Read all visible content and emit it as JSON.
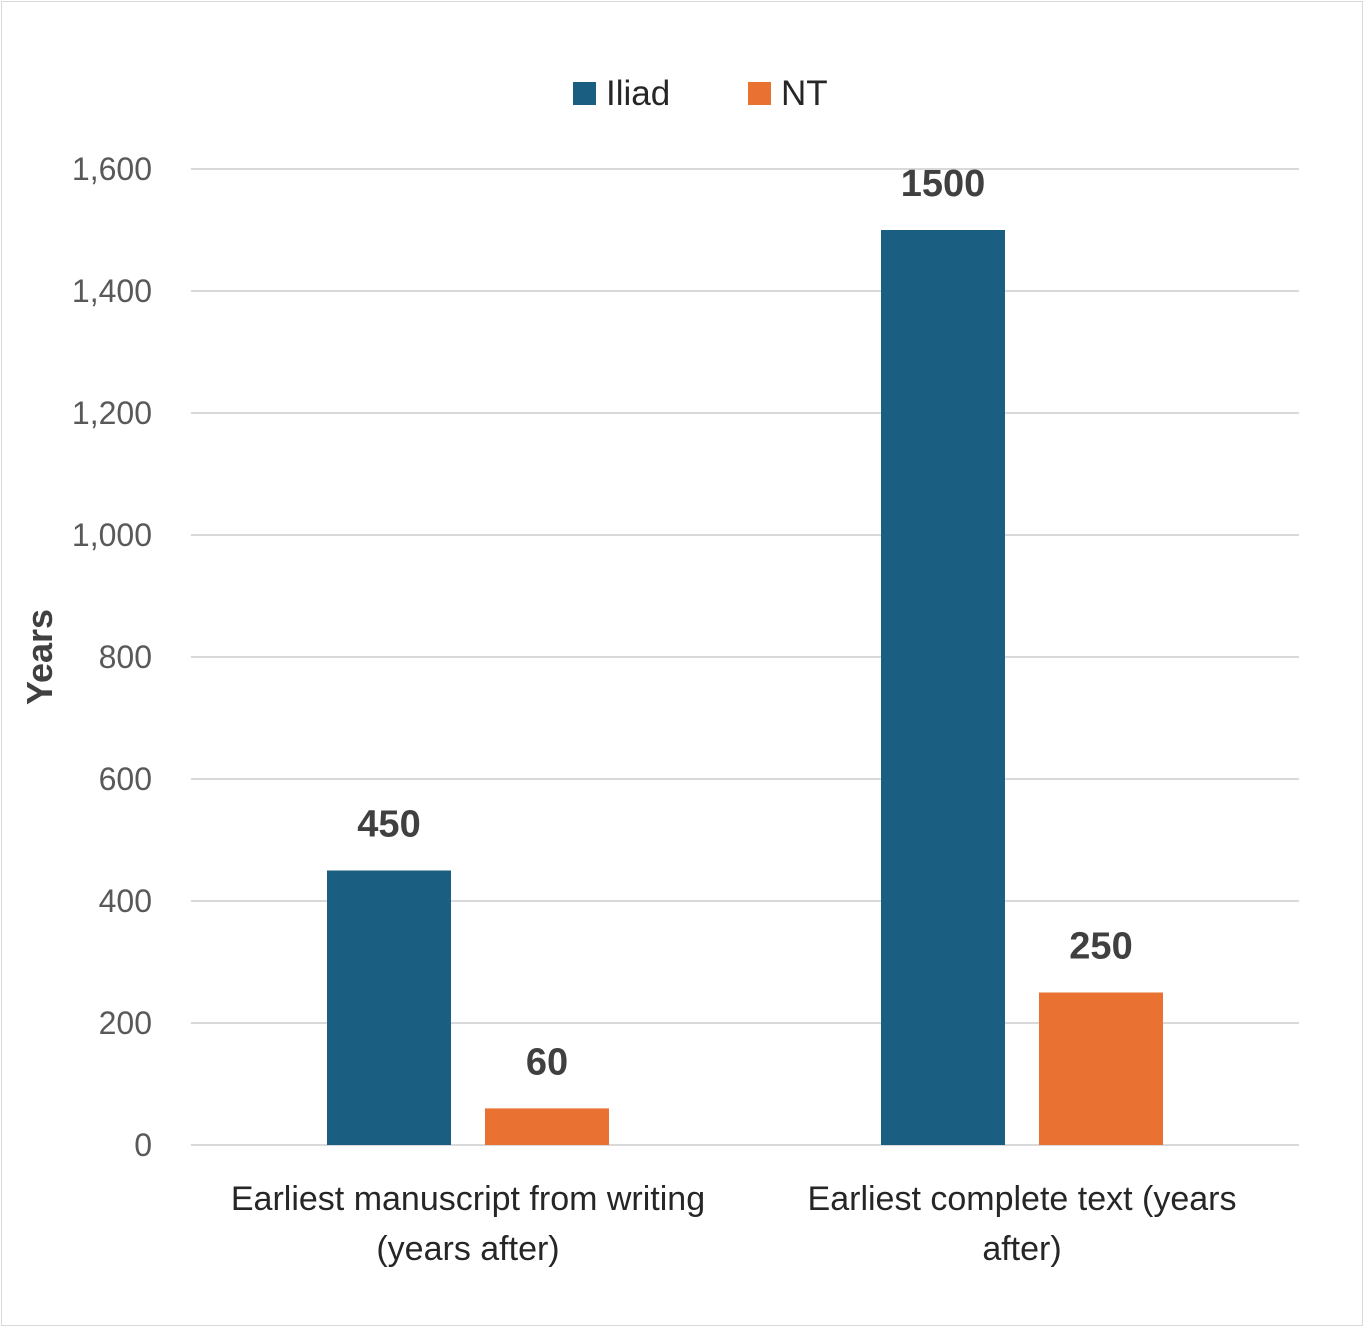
{
  "chart_data": {
    "type": "bar",
    "categories": [
      "Earliest manuscript from writing (years after)",
      "Earliest complete text (years after)"
    ],
    "category_lines": [
      [
        "Earliest manuscript from writing",
        "(years after)"
      ],
      [
        "Earliest complete text (years",
        "after)"
      ]
    ],
    "series": [
      {
        "name": "Iliad",
        "values": [
          450,
          1500
        ],
        "color": "#1a5f82"
      },
      {
        "name": "NT",
        "values": [
          60,
          250
        ],
        "color": "#e97132"
      }
    ],
    "data_labels": [
      [
        "450",
        "1500"
      ],
      [
        "60",
        "250"
      ]
    ],
    "ylabel": "Years",
    "xlabel": "",
    "ylim": [
      0,
      1600
    ],
    "yticks": [
      0,
      200,
      400,
      600,
      800,
      1000,
      1200,
      1400,
      1600
    ],
    "ytick_labels": [
      "0",
      "200",
      "400",
      "600",
      "800",
      "1,000",
      "1,200",
      "1,400",
      "1,600"
    ],
    "grid": true,
    "legend_position": "top"
  }
}
